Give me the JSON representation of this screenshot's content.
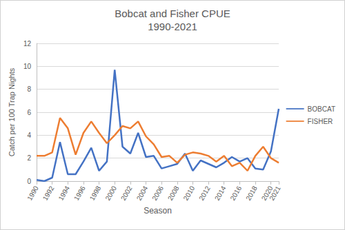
{
  "chart_data": {
    "type": "line",
    "title": "Bobcat and Fisher CPUE",
    "subtitle": "1990-2021",
    "x_label": "Season",
    "y_label": "Catch per 100 Trap Nights",
    "x": [
      1990,
      1991,
      1992,
      1993,
      1994,
      1995,
      1996,
      1997,
      1998,
      1999,
      2000,
      2001,
      2002,
      2003,
      2004,
      2005,
      2006,
      2007,
      2008,
      2009,
      2010,
      2011,
      2012,
      2013,
      2014,
      2015,
      2016,
      2017,
      2018,
      2019,
      2020,
      2021
    ],
    "series": [
      {
        "name": "BOBCAT",
        "color": "#4472c4",
        "values": [
          0.1,
          0.0,
          0.3,
          3.4,
          0.6,
          0.6,
          1.7,
          2.9,
          0.9,
          1.7,
          9.7,
          3.0,
          2.4,
          4.2,
          2.1,
          2.2,
          1.1,
          1.3,
          1.5,
          2.4,
          0.9,
          1.8,
          1.5,
          1.2,
          1.6,
          2.1,
          1.7,
          2.0,
          1.1,
          1.0,
          2.6,
          6.3
        ]
      },
      {
        "name": "FISHER",
        "color": "#ed7d31",
        "values": [
          2.2,
          2.2,
          2.5,
          5.5,
          4.6,
          2.3,
          4.2,
          5.2,
          4.2,
          3.3,
          4.0,
          4.8,
          4.6,
          5.2,
          3.9,
          3.2,
          2.1,
          2.2,
          1.6,
          2.3,
          2.5,
          2.4,
          2.2,
          1.7,
          2.2,
          1.3,
          1.6,
          0.9,
          2.2,
          3.0,
          2.0,
          1.6
        ]
      }
    ],
    "xlim": [
      1990,
      2021
    ],
    "xticks": [
      1990,
      1992,
      1994,
      1996,
      1998,
      2000,
      2002,
      2004,
      2006,
      2008,
      2010,
      2012,
      2014,
      2016,
      2018,
      2020
    ],
    "ylim": [
      0,
      12
    ],
    "yticks": [
      0,
      2,
      4,
      6,
      8,
      10,
      12
    ],
    "grid": true,
    "legend": "right"
  }
}
